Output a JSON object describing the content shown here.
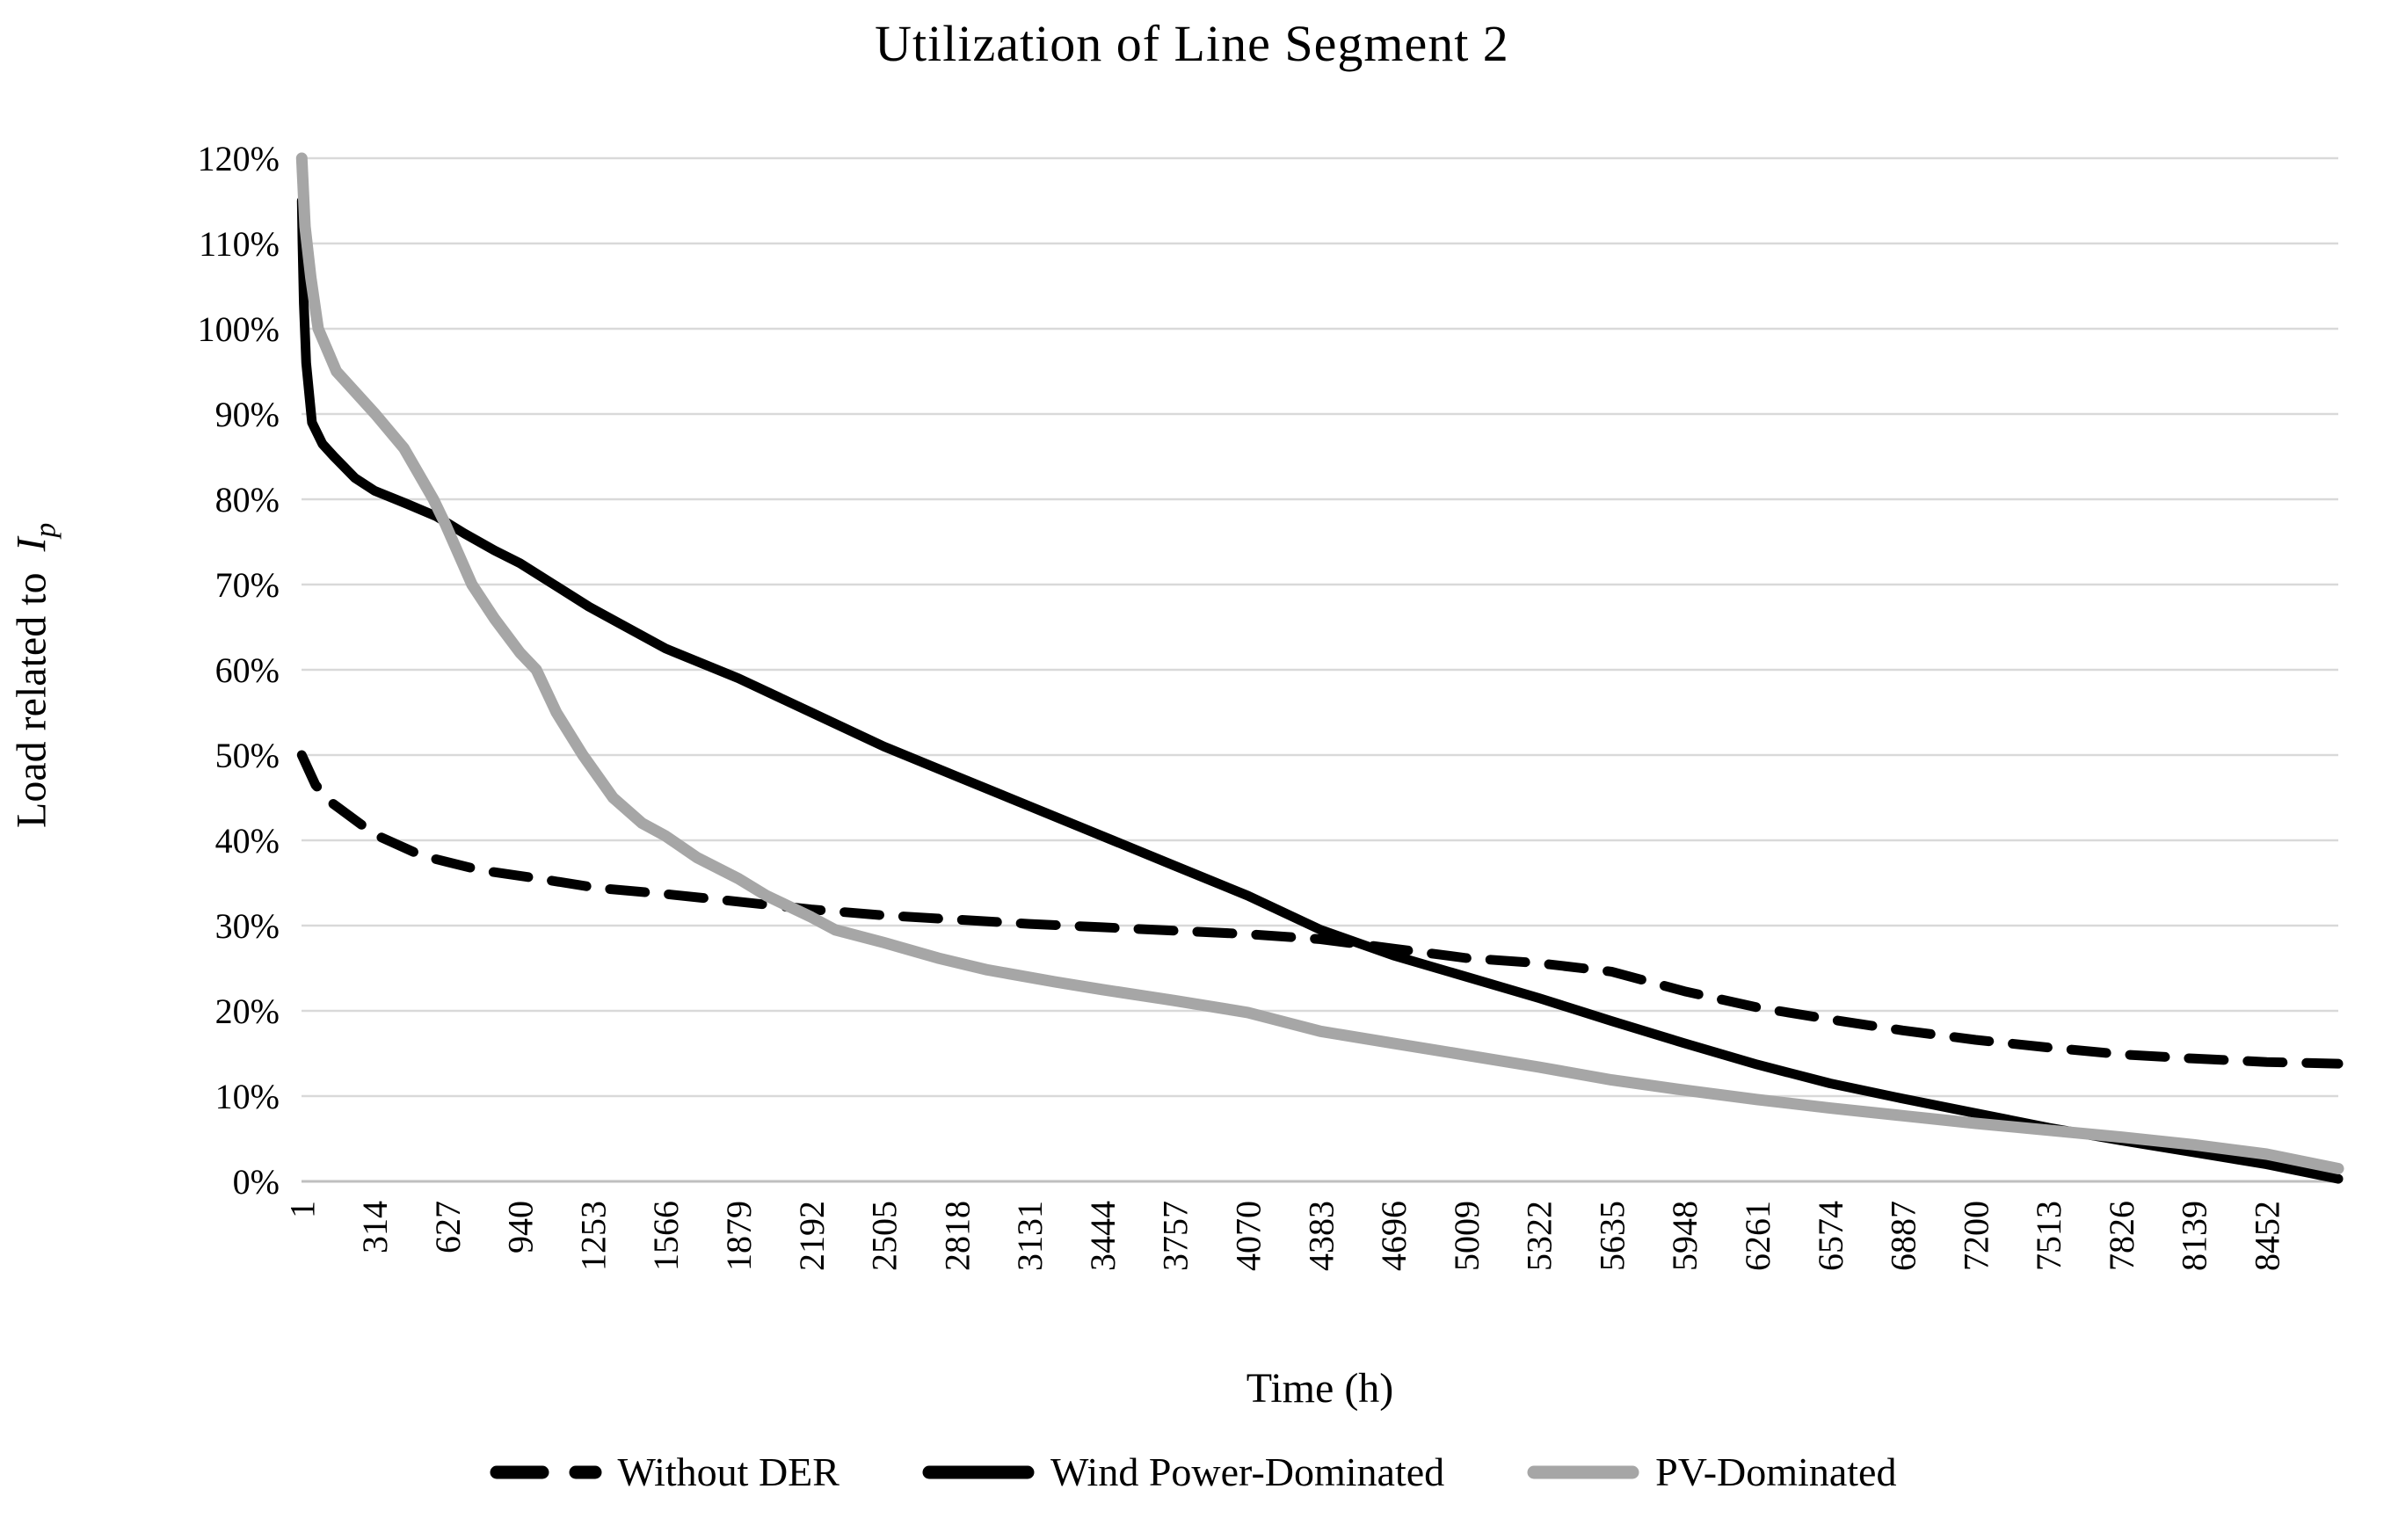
{
  "chart": {
    "title": "Utilization of Line Segment 2",
    "x_axis": {
      "title": "Time (h)"
    },
    "y_axis": {
      "title_prefix": "Load related to",
      "title_symbol": "I",
      "title_subscript": "p"
    }
  },
  "colors": {
    "background": "#ffffff",
    "text": "#000000",
    "gridline": "#d9d9d9",
    "axis_line": "#bfbfbf",
    "black_series": "#000000",
    "gray_series": "#a6a6a6"
  },
  "chart_data": {
    "type": "line",
    "title": "Utilization of Line Segment 2",
    "xlabel": "Time (h)",
    "ylabel": "Load related to I_p",
    "x_unit": "hours",
    "xlim": [
      1,
      8760
    ],
    "ylim_percent": [
      0,
      120
    ],
    "y_tick_step_percent": 10,
    "y_tick_labels": [
      "0%",
      "10%",
      "20%",
      "30%",
      "40%",
      "50%",
      "60%",
      "70%",
      "80%",
      "90%",
      "100%",
      "110%",
      "120%"
    ],
    "x_tick_interval": 313,
    "x_tick_labels": [
      "1",
      "314",
      "627",
      "940",
      "1253",
      "1566",
      "1879",
      "2192",
      "2505",
      "2818",
      "3131",
      "3444",
      "3757",
      "4070",
      "4383",
      "4696",
      "5009",
      "5322",
      "5635",
      "5948",
      "6261",
      "6574",
      "6887",
      "7200",
      "7513",
      "7826",
      "8139",
      "8452"
    ],
    "x_tick_values": [
      1,
      314,
      627,
      940,
      1253,
      1566,
      1879,
      2192,
      2505,
      2818,
      3131,
      3444,
      3757,
      4070,
      4383,
      4696,
      5009,
      5322,
      5635,
      5948,
      6261,
      6574,
      6887,
      7200,
      7513,
      7826,
      8139,
      8452
    ],
    "grid": "horizontal",
    "legend_position": "bottom",
    "series": [
      {
        "name": "Without DER",
        "color": "#000000",
        "style": "dashed",
        "stroke_width": 11,
        "points_h_pct": [
          [
            1,
            50
          ],
          [
            60,
            46.5
          ],
          [
            130,
            44.4
          ],
          [
            314,
            40.7
          ],
          [
            518,
            38.2
          ],
          [
            771,
            36.5
          ],
          [
            1021,
            35.5
          ],
          [
            1274,
            34.4
          ],
          [
            1566,
            33.7
          ],
          [
            1879,
            32.8
          ],
          [
            2192,
            31.9
          ],
          [
            2505,
            31.2
          ],
          [
            2818,
            30.7
          ],
          [
            3131,
            30.2
          ],
          [
            3444,
            29.8
          ],
          [
            3757,
            29.4
          ],
          [
            4070,
            29
          ],
          [
            4383,
            28.4
          ],
          [
            4696,
            27.3
          ],
          [
            5009,
            26.2
          ],
          [
            5322,
            25.6
          ],
          [
            5635,
            24.6
          ],
          [
            5948,
            22.3
          ],
          [
            6261,
            20.4
          ],
          [
            6574,
            19
          ],
          [
            6887,
            17.7
          ],
          [
            7200,
            16.6
          ],
          [
            7513,
            15.7
          ],
          [
            7826,
            14.9
          ],
          [
            8139,
            14.4
          ],
          [
            8452,
            14
          ],
          [
            8760,
            13.8
          ]
        ]
      },
      {
        "name": "Wind Power-Dominated",
        "color": "#000000",
        "style": "solid",
        "stroke_width": 11,
        "points_h_pct": [
          [
            1,
            115
          ],
          [
            4,
            110
          ],
          [
            10,
            103
          ],
          [
            20,
            96
          ],
          [
            45,
            89
          ],
          [
            90,
            86.5
          ],
          [
            140,
            85
          ],
          [
            230,
            82.5
          ],
          [
            314,
            81
          ],
          [
            450,
            79.5
          ],
          [
            580,
            78
          ],
          [
            700,
            76
          ],
          [
            830,
            74
          ],
          [
            940,
            72.5
          ],
          [
            1085,
            70
          ],
          [
            1236,
            67.4
          ],
          [
            1350,
            65.7
          ],
          [
            1566,
            62.5
          ],
          [
            1879,
            59
          ],
          [
            2192,
            55
          ],
          [
            2505,
            51
          ],
          [
            2818,
            47.5
          ],
          [
            3131,
            44
          ],
          [
            3444,
            40.5
          ],
          [
            3757,
            37
          ],
          [
            4070,
            33.5
          ],
          [
            4383,
            29.5
          ],
          [
            4696,
            26.5
          ],
          [
            5009,
            24
          ],
          [
            5322,
            21.5
          ],
          [
            5635,
            18.8
          ],
          [
            5948,
            16.2
          ],
          [
            6261,
            13.7
          ],
          [
            6574,
            11.5
          ],
          [
            6887,
            9.7
          ],
          [
            7200,
            8
          ],
          [
            7513,
            6.3
          ],
          [
            7826,
            4.8
          ],
          [
            8139,
            3.4
          ],
          [
            8452,
            2
          ],
          [
            8760,
            0.3
          ]
        ]
      },
      {
        "name": "PV-Dominated",
        "color": "#a6a6a6",
        "style": "solid",
        "stroke_width": 13,
        "points_h_pct": [
          [
            1,
            120
          ],
          [
            15,
            112
          ],
          [
            40,
            106
          ],
          [
            72,
            100
          ],
          [
            150,
            95
          ],
          [
            317,
            90
          ],
          [
            440,
            86
          ],
          [
            567,
            80
          ],
          [
            620,
            77
          ],
          [
            733,
            70
          ],
          [
            830,
            66
          ],
          [
            940,
            62
          ],
          [
            1010,
            60
          ],
          [
            1096,
            55
          ],
          [
            1210,
            50
          ],
          [
            1340,
            45
          ],
          [
            1465,
            42
          ],
          [
            1566,
            40.5
          ],
          [
            1700,
            38
          ],
          [
            1879,
            35.5
          ],
          [
            2000,
            33.5
          ],
          [
            2192,
            31
          ],
          [
            2295,
            29.5
          ],
          [
            2505,
            28
          ],
          [
            2737,
            26.2
          ],
          [
            2950,
            24.8
          ],
          [
            3240,
            23.4
          ],
          [
            3444,
            22.5
          ],
          [
            3757,
            21.2
          ],
          [
            4070,
            19.8
          ],
          [
            4383,
            17.6
          ],
          [
            4696,
            16.2
          ],
          [
            5009,
            14.8
          ],
          [
            5322,
            13.4
          ],
          [
            5635,
            11.9
          ],
          [
            5948,
            10.7
          ],
          [
            6261,
            9.6
          ],
          [
            6574,
            8.6
          ],
          [
            6887,
            7.7
          ],
          [
            7200,
            6.8
          ],
          [
            7513,
            6
          ],
          [
            7826,
            5.2
          ],
          [
            8139,
            4.3
          ],
          [
            8452,
            3.2
          ],
          [
            8760,
            1.5
          ]
        ]
      }
    ]
  }
}
